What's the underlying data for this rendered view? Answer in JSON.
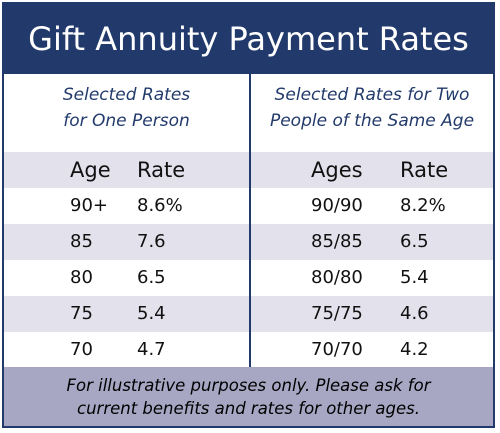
{
  "title": "Gift Annuity Payment Rates",
  "left_panel": {
    "subtitle_line1": "Selected Rates",
    "subtitle_line2": "for One Person",
    "headers": {
      "col1": "Age",
      "col2": "Rate"
    },
    "rows": [
      {
        "age": "90+",
        "rate": "8.6%"
      },
      {
        "age": "85",
        "rate": "7.6"
      },
      {
        "age": "80",
        "rate": "6.5"
      },
      {
        "age": "75",
        "rate": "5.4"
      },
      {
        "age": "70",
        "rate": "4.7"
      }
    ]
  },
  "right_panel": {
    "subtitle_line1": "Selected Rates for Two",
    "subtitle_line2": "People of the Same Age",
    "headers": {
      "col1": "Ages",
      "col2": "Rate"
    },
    "rows": [
      {
        "ages": "90/90",
        "rate": "8.2%"
      },
      {
        "ages": "85/85",
        "rate": "6.5"
      },
      {
        "ages": "80/80",
        "rate": "5.4"
      },
      {
        "ages": "75/75",
        "rate": "4.6"
      },
      {
        "ages": "70/70",
        "rate": "4.2"
      }
    ]
  },
  "footer": {
    "line1": "For illustrative purposes only. Please ask for",
    "line2": "current benefits and rates for other ages."
  },
  "colors": {
    "navy": "#223a6b",
    "row_shade": "#e3e2ec",
    "footer_bg": "#a7a6c3"
  }
}
